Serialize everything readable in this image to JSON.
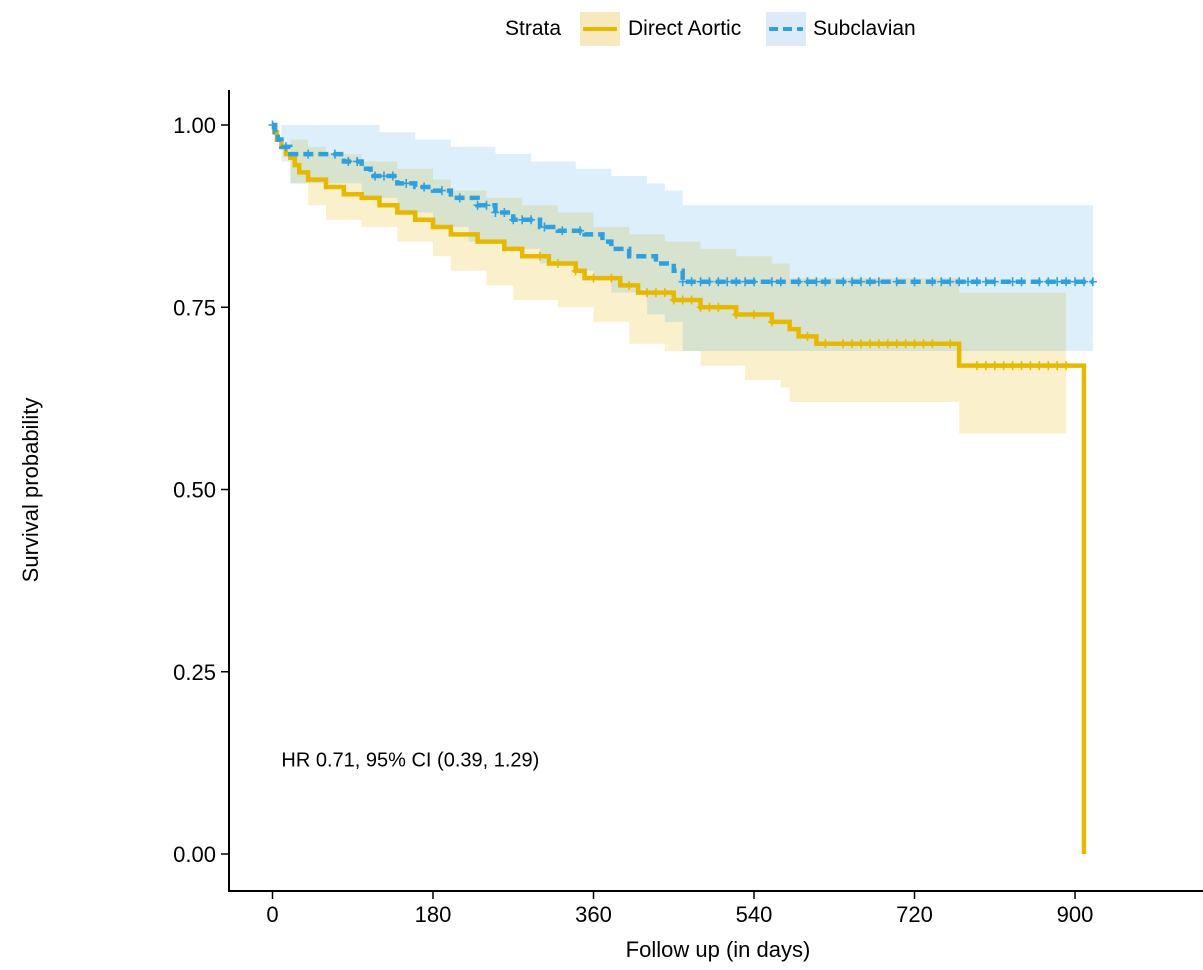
{
  "chart_data": {
    "type": "line",
    "subtype": "kaplan-meier step survival curves with 95% confidence bands and censor marks",
    "xlabel": "Follow up (in days)",
    "ylabel": "Survival probability",
    "xlim": [
      -48,
      1010
    ],
    "ylim": [
      -0.04,
      1.05
    ],
    "x_ticks": [
      0,
      180,
      360,
      540,
      720,
      900
    ],
    "x_tick_labels": [
      "0",
      "180",
      "360",
      "540",
      "720",
      "900"
    ],
    "y_ticks": [
      0,
      0.25,
      0.5,
      0.75,
      1.0
    ],
    "y_tick_labels": [
      "0.00",
      "0.25",
      "0.50",
      "0.75",
      "1.00"
    ],
    "grid": false,
    "legend": {
      "title": "Strata",
      "position": "top"
    },
    "annotation": {
      "text": "HR 0.71, 95% CI (0.39, 1.29)",
      "x": 10,
      "y": 0.12
    },
    "series": [
      {
        "name": "Direct Aortic",
        "color": "#E7B800",
        "line_style": "solid",
        "fill": "#F5E9BD",
        "steps": [
          [
            0,
            1.0
          ],
          [
            2,
            0.99
          ],
          [
            5,
            0.98
          ],
          [
            10,
            0.97
          ],
          [
            15,
            0.96
          ],
          [
            20,
            0.955
          ],
          [
            25,
            0.945
          ],
          [
            30,
            0.935
          ],
          [
            40,
            0.925
          ],
          [
            60,
            0.915
          ],
          [
            80,
            0.905
          ],
          [
            100,
            0.9
          ],
          [
            120,
            0.89
          ],
          [
            140,
            0.88
          ],
          [
            160,
            0.87
          ],
          [
            180,
            0.86
          ],
          [
            200,
            0.85
          ],
          [
            230,
            0.84
          ],
          [
            260,
            0.83
          ],
          [
            280,
            0.82
          ],
          [
            310,
            0.81
          ],
          [
            340,
            0.8
          ],
          [
            350,
            0.79
          ],
          [
            390,
            0.78
          ],
          [
            410,
            0.77
          ],
          [
            450,
            0.76
          ],
          [
            480,
            0.75
          ],
          [
            520,
            0.74
          ],
          [
            560,
            0.73
          ],
          [
            580,
            0.72
          ],
          [
            590,
            0.71
          ],
          [
            610,
            0.7
          ],
          [
            770,
            0.67
          ],
          [
            910,
            0.67
          ],
          [
            910,
            0.0
          ]
        ],
        "lower": [
          [
            0,
            1.0
          ],
          [
            20,
            0.92
          ],
          [
            40,
            0.89
          ],
          [
            60,
            0.87
          ],
          [
            100,
            0.86
          ],
          [
            140,
            0.84
          ],
          [
            180,
            0.82
          ],
          [
            200,
            0.8
          ],
          [
            240,
            0.78
          ],
          [
            270,
            0.76
          ],
          [
            320,
            0.75
          ],
          [
            360,
            0.73
          ],
          [
            400,
            0.7
          ],
          [
            440,
            0.69
          ],
          [
            480,
            0.67
          ],
          [
            530,
            0.65
          ],
          [
            570,
            0.64
          ],
          [
            580,
            0.62
          ],
          [
            770,
            0.577
          ],
          [
            890,
            0.577
          ]
        ],
        "upper": [
          [
            0,
            1.0
          ],
          [
            20,
            0.98
          ],
          [
            40,
            0.97
          ],
          [
            60,
            0.96
          ],
          [
            100,
            0.95
          ],
          [
            140,
            0.94
          ],
          [
            180,
            0.925
          ],
          [
            200,
            0.91
          ],
          [
            240,
            0.9
          ],
          [
            280,
            0.89
          ],
          [
            320,
            0.88
          ],
          [
            360,
            0.86
          ],
          [
            400,
            0.85
          ],
          [
            440,
            0.84
          ],
          [
            480,
            0.83
          ],
          [
            520,
            0.82
          ],
          [
            560,
            0.81
          ],
          [
            580,
            0.79
          ],
          [
            770,
            0.77
          ],
          [
            890,
            0.77
          ]
        ],
        "censor_x": [
          300,
          320,
          340,
          360,
          380,
          400,
          420,
          430,
          440,
          450,
          460,
          470,
          480,
          490,
          500,
          520,
          540,
          560,
          600,
          620,
          640,
          650,
          660,
          670,
          680,
          690,
          700,
          710,
          720,
          730,
          740,
          760,
          790,
          800,
          810,
          820,
          830,
          840,
          850,
          860,
          870,
          880,
          890
        ]
      },
      {
        "name": "Subclavian",
        "color": "#2E9FDF",
        "line_style": "dashed",
        "fill": "#DCEBF7",
        "steps": [
          [
            0,
            1.0
          ],
          [
            3,
            0.99
          ],
          [
            6,
            0.98
          ],
          [
            10,
            0.97
          ],
          [
            20,
            0.96
          ],
          [
            80,
            0.95
          ],
          [
            100,
            0.94
          ],
          [
            110,
            0.93
          ],
          [
            140,
            0.92
          ],
          [
            160,
            0.915
          ],
          [
            180,
            0.91
          ],
          [
            200,
            0.9
          ],
          [
            230,
            0.89
          ],
          [
            250,
            0.88
          ],
          [
            270,
            0.87
          ],
          [
            300,
            0.86
          ],
          [
            320,
            0.855
          ],
          [
            350,
            0.85
          ],
          [
            370,
            0.84
          ],
          [
            380,
            0.83
          ],
          [
            400,
            0.82
          ],
          [
            430,
            0.81
          ],
          [
            450,
            0.8
          ],
          [
            460,
            0.785
          ],
          [
            920,
            0.785
          ]
        ],
        "lower": [
          [
            0,
            1.0
          ],
          [
            10,
            0.95
          ],
          [
            20,
            0.92
          ],
          [
            60,
            0.92
          ],
          [
            100,
            0.9
          ],
          [
            140,
            0.88
          ],
          [
            180,
            0.86
          ],
          [
            220,
            0.84
          ],
          [
            260,
            0.83
          ],
          [
            300,
            0.81
          ],
          [
            340,
            0.8
          ],
          [
            360,
            0.79
          ],
          [
            380,
            0.77
          ],
          [
            420,
            0.74
          ],
          [
            440,
            0.73
          ],
          [
            460,
            0.69
          ],
          [
            900,
            0.69
          ],
          [
            920,
            0.69
          ]
        ],
        "upper": [
          [
            0,
            1.0
          ],
          [
            90,
            1.0
          ],
          [
            120,
            0.99
          ],
          [
            160,
            0.98
          ],
          [
            200,
            0.97
          ],
          [
            250,
            0.96
          ],
          [
            290,
            0.95
          ],
          [
            340,
            0.94
          ],
          [
            380,
            0.93
          ],
          [
            420,
            0.92
          ],
          [
            440,
            0.91
          ],
          [
            460,
            0.89
          ],
          [
            900,
            0.89
          ],
          [
            920,
            0.89
          ]
        ],
        "censor_x": [
          0,
          15,
          40,
          70,
          85,
          95,
          115,
          125,
          135,
          150,
          170,
          190,
          210,
          230,
          240,
          250,
          260,
          270,
          280,
          290,
          305,
          325,
          345,
          460,
          470,
          480,
          490,
          500,
          510,
          520,
          530,
          540,
          560,
          570,
          590,
          600,
          610,
          620,
          640,
          650,
          660,
          670,
          680,
          700,
          720,
          740,
          750,
          760,
          770,
          780,
          790,
          800,
          810,
          830,
          840,
          860,
          870,
          880,
          890,
          900,
          910,
          920
        ]
      }
    ]
  }
}
